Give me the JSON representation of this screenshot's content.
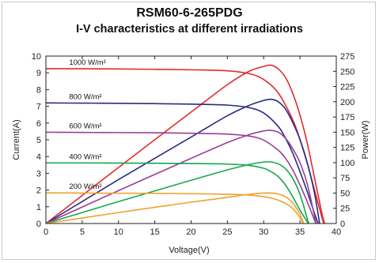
{
  "chart_data": {
    "type": "line",
    "title": "RSM60-6-265PDG",
    "subtitle": "I-V characteristics at different irradiations",
    "xlabel": "Voltage(V)",
    "ylabel": "Current(A)",
    "y2label": "Power(W)",
    "xlim": [
      0,
      40
    ],
    "ylim": [
      0,
      10
    ],
    "y2lim": [
      0,
      275
    ],
    "xticks": [
      0,
      5,
      10,
      15,
      20,
      25,
      30,
      35,
      40
    ],
    "yticks": [
      0,
      1,
      2,
      3,
      4,
      5,
      6,
      7,
      8,
      9,
      10
    ],
    "y2ticks": [
      0,
      25,
      50,
      75,
      100,
      125,
      150,
      175,
      200,
      225,
      250,
      275
    ],
    "grid": false,
    "series": [
      {
        "name": "1000 W/m²",
        "iv_color": "#e32b2b",
        "pv_color": "#e32b2b",
        "iv": [
          [
            0,
            9.25
          ],
          [
            5,
            9.24
          ],
          [
            10,
            9.23
          ],
          [
            15,
            9.21
          ],
          [
            20,
            9.18
          ],
          [
            25,
            9.12
          ],
          [
            28,
            8.95
          ],
          [
            30,
            8.6
          ],
          [
            32,
            7.8
          ],
          [
            34,
            6.2
          ],
          [
            35,
            5.0
          ],
          [
            36,
            3.6
          ],
          [
            37,
            2.0
          ],
          [
            38,
            0.4
          ],
          [
            38.3,
            0
          ]
        ],
        "pv": [
          [
            0,
            0
          ],
          [
            10,
            92
          ],
          [
            20,
            183
          ],
          [
            25,
            228
          ],
          [
            28,
            250
          ],
          [
            30,
            258
          ],
          [
            31,
            260
          ],
          [
            32,
            254
          ],
          [
            33,
            240
          ],
          [
            34,
            214
          ],
          [
            35,
            178
          ],
          [
            36,
            132
          ],
          [
            37,
            75
          ],
          [
            38,
            18
          ],
          [
            38.4,
            0
          ]
        ]
      },
      {
        "name": "800 W/m²",
        "iv_color": "#2a2a86",
        "pv_color": "#2a2a86",
        "iv": [
          [
            0,
            7.2
          ],
          [
            5,
            7.19
          ],
          [
            10,
            7.18
          ],
          [
            15,
            7.16
          ],
          [
            20,
            7.13
          ],
          [
            25,
            7.07
          ],
          [
            28,
            6.92
          ],
          [
            30,
            6.6
          ],
          [
            32,
            5.8
          ],
          [
            33,
            5.1
          ],
          [
            34,
            4.2
          ],
          [
            35,
            3.1
          ],
          [
            36,
            1.9
          ],
          [
            37,
            0.6
          ],
          [
            37.5,
            0
          ]
        ],
        "pv": [
          [
            0,
            0
          ],
          [
            10,
            72
          ],
          [
            20,
            142
          ],
          [
            25,
            177
          ],
          [
            28,
            194
          ],
          [
            30,
            202
          ],
          [
            31,
            204
          ],
          [
            32,
            200
          ],
          [
            33,
            188
          ],
          [
            34,
            166
          ],
          [
            35,
            138
          ],
          [
            36,
            100
          ],
          [
            37,
            50
          ],
          [
            37.7,
            0
          ]
        ]
      },
      {
        "name": "600 W/m²",
        "iv_color": "#9a3e96",
        "pv_color": "#9a3e96",
        "iv": [
          [
            0,
            5.45
          ],
          [
            5,
            5.44
          ],
          [
            10,
            5.43
          ],
          [
            15,
            5.42
          ],
          [
            20,
            5.39
          ],
          [
            25,
            5.34
          ],
          [
            28,
            5.22
          ],
          [
            30,
            4.98
          ],
          [
            32,
            4.38
          ],
          [
            33,
            3.9
          ],
          [
            34,
            3.2
          ],
          [
            35,
            2.3
          ],
          [
            36,
            1.3
          ],
          [
            37,
            0.2
          ],
          [
            37.2,
            0
          ]
        ],
        "pv": [
          [
            0,
            0
          ],
          [
            10,
            54
          ],
          [
            20,
            107
          ],
          [
            25,
            133
          ],
          [
            28,
            146
          ],
          [
            30,
            152
          ],
          [
            31,
            153
          ],
          [
            32,
            150
          ],
          [
            33,
            140
          ],
          [
            34,
            123
          ],
          [
            35,
            100
          ],
          [
            36,
            65
          ],
          [
            37,
            12
          ],
          [
            37.2,
            0
          ]
        ]
      },
      {
        "name": "400 W/m²",
        "iv_color": "#16a84a",
        "pv_color": "#16a84a",
        "iv": [
          [
            0,
            3.62
          ],
          [
            5,
            3.62
          ],
          [
            10,
            3.61
          ],
          [
            15,
            3.6
          ],
          [
            20,
            3.58
          ],
          [
            25,
            3.55
          ],
          [
            28,
            3.47
          ],
          [
            30,
            3.3
          ],
          [
            31,
            3.1
          ],
          [
            32,
            2.8
          ],
          [
            33,
            2.3
          ],
          [
            34,
            1.6
          ],
          [
            35,
            0.8
          ],
          [
            36,
            0.1
          ],
          [
            36.2,
            0
          ]
        ],
        "pv": [
          [
            0,
            0
          ],
          [
            10,
            36
          ],
          [
            20,
            71
          ],
          [
            25,
            88
          ],
          [
            28,
            97
          ],
          [
            30,
            101
          ],
          [
            31,
            101
          ],
          [
            32,
            98
          ],
          [
            33,
            90
          ],
          [
            34,
            74
          ],
          [
            35,
            48
          ],
          [
            36,
            8
          ],
          [
            36.2,
            0
          ]
        ]
      },
      {
        "name": "200 W/m²",
        "iv_color": "#f0a22a",
        "pv_color": "#f0a22a",
        "iv": [
          [
            0,
            1.83
          ],
          [
            5,
            1.82
          ],
          [
            10,
            1.81
          ],
          [
            15,
            1.8
          ],
          [
            20,
            1.78
          ],
          [
            25,
            1.75
          ],
          [
            28,
            1.7
          ],
          [
            30,
            1.6
          ],
          [
            31,
            1.52
          ],
          [
            32,
            1.4
          ],
          [
            33,
            1.2
          ],
          [
            34,
            0.9
          ],
          [
            35,
            0.35
          ],
          [
            35.4,
            0
          ]
        ],
        "pv": [
          [
            0,
            0
          ],
          [
            10,
            18
          ],
          [
            20,
            35
          ],
          [
            25,
            43
          ],
          [
            28,
            48
          ],
          [
            30,
            50
          ],
          [
            31,
            50
          ],
          [
            32,
            48.5
          ],
          [
            33,
            44
          ],
          [
            34,
            34
          ],
          [
            35,
            15
          ],
          [
            35.5,
            0
          ]
        ]
      }
    ]
  }
}
